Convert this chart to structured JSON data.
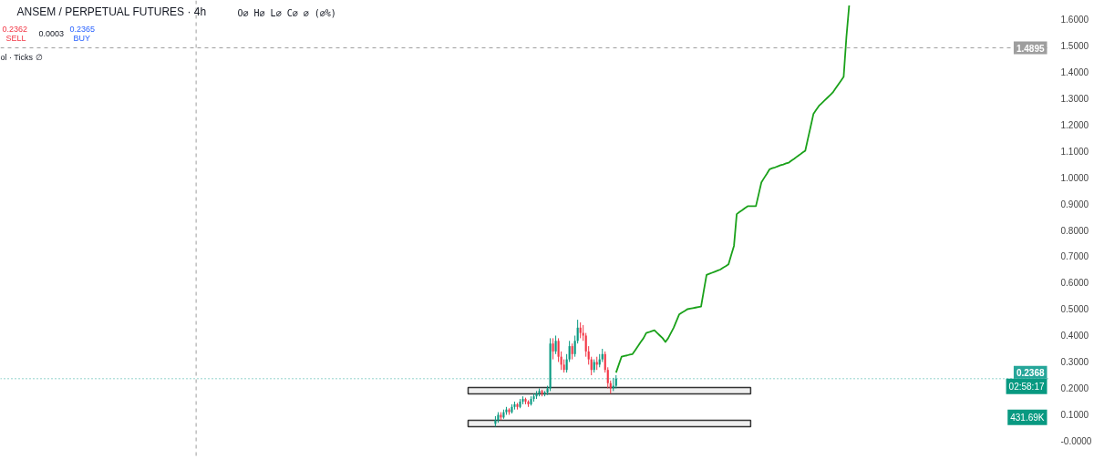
{
  "chart_data": {
    "type": "candlestick",
    "title": "ANSEM / PERPETUAL FUTURES · 4h",
    "subtitle": "O∅ H∅ L∅ C∅ ∅ (∅%)",
    "categories": [
      null,
      null,
      null,
      null,
      null,
      null,
      null,
      null,
      null,
      null,
      null,
      null,
      null,
      null,
      null,
      null,
      null,
      null,
      null,
      null,
      null,
      null,
      null,
      null,
      null,
      null,
      null,
      null,
      null,
      null,
      null,
      null,
      null,
      null,
      null,
      null,
      null,
      null,
      null,
      null,
      null,
      null,
      null,
      null,
      null,
      null,
      null,
      null,
      null,
      null,
      null,
      null,
      null,
      null,
      null,
      null,
      null,
      null,
      null,
      null,
      null,
      null,
      null,
      null,
      null,
      null,
      null,
      null,
      null,
      null,
      null,
      null,
      null,
      null,
      null,
      null,
      null,
      null,
      null,
      null,
      null,
      null,
      null,
      null,
      null,
      null,
      null,
      null,
      null,
      null,
      null,
      null,
      null,
      null,
      null,
      null,
      null,
      null,
      null,
      null,
      null,
      null,
      null,
      null,
      null,
      null,
      null,
      null,
      null,
      null,
      null,
      null,
      null,
      null,
      null,
      null,
      null,
      null,
      null,
      null,
      null,
      null,
      null,
      null,
      null,
      null,
      null,
      null,
      null,
      null,
      null,
      null,
      null,
      null,
      null,
      null,
      null,
      null,
      null,
      null,
      null,
      null,
      null,
      null,
      null,
      null,
      null,
      null,
      null,
      null,
      null,
      null,
      null,
      null,
      null,
      null,
      null,
      null,
      null,
      null,
      null,
      null,
      null,
      null,
      null,
      null,
      null,
      null,
      null,
      null,
      null,
      null,
      null,
      null,
      null,
      null,
      null,
      null,
      null,
      null,
      null,
      null,
      null,
      null,
      null,
      null,
      null,
      null,
      null,
      null,
      null,
      null,
      null,
      null,
      null,
      null,
      null,
      null,
      null,
      null,
      null,
      null,
      null,
      null,
      null,
      null,
      null,
      null,
      null,
      null,
      null,
      null,
      null,
      null,
      null,
      null,
      null,
      null,
      null,
      null,
      null,
      null,
      null,
      null,
      null,
      null,
      null,
      null,
      null,
      null,
      null,
      null,
      null,
      null,
      null,
      null,
      null,
      null,
      null,
      null,
      null,
      null,
      null,
      null,
      null,
      null,
      null,
      null,
      null,
      null,
      null,
      null,
      null,
      null,
      null,
      null,
      null,
      null,
      null,
      null,
      null,
      null,
      null,
      null,
      null,
      null,
      null,
      null,
      null,
      null,
      null,
      null,
      null,
      null,
      null,
      null,
      null,
      null,
      null,
      null,
      null,
      null,
      null,
      null,
      null,
      null,
      null,
      null,
      null,
      null,
      null,
      null,
      null,
      null,
      null,
      null,
      null,
      null,
      null,
      null,
      null,
      null,
      null,
      null,
      null,
      null,
      null,
      null,
      null,
      null,
      null,
      null,
      null,
      null,
      null,
      null,
      null,
      null,
      null,
      null,
      null,
      null,
      null,
      null,
      null,
      null,
      null,
      null,
      null,
      null,
      null,
      null,
      null,
      null,
      null,
      null,
      null,
      null,
      null,
      null,
      null,
      null,
      null,
      null,
      null,
      null,
      null,
      null,
      null,
      null,
      null,
      null,
      null,
      null,
      null,
      null,
      null,
      null,
      null,
      null,
      null,
      null,
      null,
      null,
      null,
      null,
      null,
      null,
      null,
      null,
      null,
      null,
      null,
      null,
      null,
      null,
      null,
      null,
      null,
      null,
      null,
      null,
      null
    ],
    "ohlc": [
      null,
      null,
      null,
      null,
      null,
      null,
      null,
      null,
      null,
      null,
      null,
      null,
      null,
      null,
      null,
      null,
      null,
      null,
      null,
      null,
      null,
      null,
      null,
      null,
      null,
      null,
      null,
      null,
      null,
      null,
      null,
      null,
      null,
      null,
      null,
      null,
      null,
      null,
      null,
      null,
      null,
      null,
      null,
      null,
      null,
      null,
      null,
      null,
      null,
      null,
      null,
      null,
      null,
      null,
      null,
      null,
      null,
      null,
      null,
      null,
      null,
      null,
      null,
      null,
      null,
      null,
      null,
      null,
      null,
      null,
      null,
      null,
      null,
      null,
      null,
      null,
      null,
      null,
      null,
      null,
      null,
      null,
      null,
      null,
      null,
      null,
      null,
      null,
      null,
      null,
      null,
      null,
      null,
      null,
      null,
      null,
      null,
      null,
      null,
      null,
      null,
      null,
      null,
      null,
      null,
      null,
      null,
      null,
      null,
      null,
      null,
      null,
      null,
      null,
      null,
      null,
      null,
      null,
      null,
      null,
      null,
      null,
      null,
      null,
      null,
      null,
      null,
      null,
      null,
      null,
      null,
      null,
      null,
      null,
      null,
      null,
      null,
      null,
      null,
      null,
      null,
      null,
      null,
      null,
      null,
      null,
      null,
      null,
      null,
      null,
      null,
      null,
      null,
      null,
      null,
      null,
      null,
      null,
      null,
      null,
      null,
      null,
      null,
      null,
      null,
      null,
      null,
      null,
      null,
      null,
      null,
      null,
      null,
      null,
      null,
      null,
      null,
      null,
      null,
      null,
      [
        0.066,
        0.095,
        0.055,
        0.08
      ],
      [
        0.08,
        0.11,
        0.07,
        0.1
      ],
      [
        0.1,
        0.11,
        0.08,
        0.09
      ],
      [
        0.09,
        0.12,
        0.085,
        0.11
      ],
      [
        0.11,
        0.13,
        0.1,
        0.12
      ],
      [
        0.12,
        0.125,
        0.1,
        0.11
      ],
      [
        0.11,
        0.14,
        0.105,
        0.13
      ],
      [
        0.13,
        0.15,
        0.12,
        0.14
      ],
      [
        0.14,
        0.145,
        0.12,
        0.13
      ],
      [
        0.13,
        0.16,
        0.125,
        0.15
      ],
      [
        0.15,
        0.17,
        0.14,
        0.16
      ],
      [
        0.16,
        0.165,
        0.14,
        0.15
      ],
      [
        0.15,
        0.155,
        0.13,
        0.14
      ],
      [
        0.14,
        0.17,
        0.135,
        0.16
      ],
      [
        0.16,
        0.18,
        0.15,
        0.17
      ],
      [
        0.17,
        0.19,
        0.16,
        0.18
      ],
      [
        0.18,
        0.2,
        0.17,
        0.19
      ],
      [
        0.19,
        0.195,
        0.17,
        0.18
      ],
      [
        0.18,
        0.19,
        0.17,
        0.185
      ],
      [
        0.185,
        0.21,
        0.175,
        0.2
      ],
      [
        0.2,
        0.39,
        0.19,
        0.37
      ],
      [
        0.37,
        0.39,
        0.31,
        0.34
      ],
      [
        0.34,
        0.4,
        0.33,
        0.38
      ],
      [
        0.38,
        0.39,
        0.3,
        0.32
      ],
      [
        0.32,
        0.34,
        0.27,
        0.29
      ],
      [
        0.29,
        0.31,
        0.26,
        0.27
      ],
      [
        0.27,
        0.33,
        0.26,
        0.31
      ],
      [
        0.31,
        0.38,
        0.3,
        0.36
      ],
      [
        0.36,
        0.37,
        0.31,
        0.33
      ],
      [
        0.33,
        0.4,
        0.32,
        0.38
      ],
      [
        0.38,
        0.46,
        0.37,
        0.43
      ],
      [
        0.43,
        0.45,
        0.39,
        0.41
      ],
      [
        0.41,
        0.44,
        0.38,
        0.4
      ],
      [
        0.4,
        0.41,
        0.32,
        0.34
      ],
      [
        0.34,
        0.36,
        0.29,
        0.31
      ],
      [
        0.31,
        0.32,
        0.25,
        0.27
      ],
      [
        0.27,
        0.31,
        0.26,
        0.3
      ],
      [
        0.3,
        0.32,
        0.27,
        0.29
      ],
      [
        0.29,
        0.33,
        0.28,
        0.31
      ],
      [
        0.31,
        0.35,
        0.3,
        0.33
      ],
      [
        0.33,
        0.34,
        0.26,
        0.27
      ],
      [
        0.27,
        0.28,
        0.2,
        0.22
      ],
      [
        0.22,
        0.23,
        0.18,
        0.2
      ],
      [
        0.2,
        0.24,
        0.19,
        0.21
      ],
      [
        0.21,
        0.25,
        0.2,
        0.237
      ],
      null,
      null,
      null,
      null,
      null,
      null,
      null,
      null,
      null,
      null,
      null,
      null,
      null,
      null,
      null,
      null,
      null,
      null,
      null,
      null,
      null,
      null,
      null,
      null,
      null,
      null,
      null,
      null,
      null,
      null,
      null,
      null,
      null,
      null,
      null,
      null,
      null,
      null,
      null,
      null,
      null,
      null,
      null,
      null,
      null,
      null,
      null,
      null,
      null,
      null,
      null,
      null,
      null,
      null,
      null,
      null,
      null,
      null,
      null,
      null,
      null,
      null,
      null,
      null,
      null,
      null,
      null,
      null,
      null,
      null,
      null,
      null,
      null,
      null,
      null,
      null,
      null,
      null,
      null,
      null,
      null,
      null,
      null,
      null,
      null,
      null,
      null,
      null,
      null,
      null,
      null,
      null,
      null,
      null,
      null,
      null,
      null,
      null,
      null,
      null,
      null,
      null,
      null,
      null,
      null,
      null,
      null,
      null,
      null,
      null,
      null,
      null,
      null,
      null,
      null,
      null,
      null,
      null,
      null,
      null,
      null,
      null,
      null,
      null,
      null,
      null,
      null,
      null,
      null,
      null,
      null,
      null,
      null,
      null,
      null,
      null,
      null,
      null,
      null,
      null,
      null,
      null,
      null,
      null,
      null,
      null,
      null,
      null,
      null,
      null,
      null,
      null,
      null,
      null,
      null,
      null,
      null,
      null
    ],
    "colors": [
      null,
      null,
      null,
      null,
      null,
      null,
      null,
      null,
      null,
      null,
      null,
      null,
      null,
      null,
      null,
      null,
      null,
      null,
      null,
      null,
      null,
      null,
      null,
      null,
      null,
      null,
      null,
      null,
      null,
      null,
      null,
      null,
      null,
      null,
      null,
      null,
      null,
      null,
      null,
      null,
      null,
      null,
      null,
      null,
      null,
      null,
      null,
      null,
      null,
      null,
      null,
      null,
      null,
      null,
      null,
      null,
      null,
      null,
      null,
      null,
      null,
      null,
      null,
      null,
      null,
      null,
      null,
      null,
      null,
      null,
      null,
      null,
      null,
      null,
      null,
      null,
      null,
      null,
      null,
      null,
      null,
      null,
      null,
      null,
      null,
      null,
      null,
      null,
      null,
      null,
      null,
      null,
      null,
      null,
      null,
      null,
      null,
      null,
      null,
      null,
      null,
      null,
      null,
      null,
      null,
      null,
      null,
      null,
      null,
      null,
      null,
      null,
      null,
      null,
      null,
      null,
      null,
      null,
      null,
      null,
      null,
      null,
      null,
      null,
      null,
      null,
      null,
      null,
      null,
      null,
      null,
      null,
      null,
      null,
      null,
      null,
      null,
      null,
      null,
      null,
      null,
      null,
      null,
      null,
      null,
      null,
      null,
      null,
      null,
      null,
      null,
      null,
      null,
      null,
      null,
      null,
      null,
      null,
      null,
      null,
      null,
      null,
      null,
      null,
      null,
      null,
      null,
      null,
      null,
      null,
      null,
      null,
      null,
      null,
      null,
      null,
      null,
      null,
      null,
      null,
      "#089981",
      "#089981",
      "#f23645",
      "#089981",
      "#089981",
      "#f23645",
      "#089981",
      "#089981",
      "#f23645",
      "#089981",
      "#089981",
      "#f23645",
      "#f23645",
      "#089981",
      "#089981",
      "#089981",
      "#089981",
      "#f23645",
      "#089981",
      "#089981",
      "#089981",
      "#f23645",
      "#089981",
      "#f23645",
      "#f23645",
      "#f23645",
      "#089981",
      "#089981",
      "#f23645",
      "#089981",
      "#089981",
      "#f23645",
      "#f23645",
      "#f23645",
      "#f23645",
      "#f23645",
      "#089981",
      "#f23645",
      "#089981",
      "#089981",
      "#f23645",
      "#f23645",
      "#f23645",
      "#089981",
      "#089981",
      null,
      null,
      null,
      null,
      null,
      null,
      null,
      null,
      null,
      null,
      null,
      null,
      null,
      null,
      null,
      null,
      null,
      null,
      null,
      null,
      null,
      null,
      null,
      null,
      null,
      null,
      null,
      null,
      null,
      null,
      null,
      null,
      null,
      null,
      null,
      null,
      null,
      null,
      null,
      null,
      null,
      null,
      null,
      null,
      null,
      null,
      null,
      null,
      null,
      null,
      null,
      null,
      null,
      null,
      null,
      null,
      null,
      null,
      null,
      null,
      null,
      null,
      null,
      null,
      null,
      null,
      null,
      null,
      null,
      null,
      null,
      null,
      null,
      null,
      null,
      null,
      null,
      null,
      null,
      null,
      null,
      null,
      null,
      null,
      null,
      null,
      null,
      null,
      null,
      null,
      null,
      null,
      null,
      null,
      null,
      null,
      null,
      null,
      null,
      null,
      null,
      null,
      null,
      null,
      null,
      null,
      null,
      null,
      null,
      null,
      null,
      null,
      null,
      null,
      null,
      null,
      null,
      null,
      null,
      null,
      null,
      null,
      null,
      null,
      null,
      null,
      null,
      null,
      null,
      null,
      null,
      null,
      null,
      null,
      null,
      null,
      null,
      null,
      null,
      null,
      null,
      null,
      null,
      null,
      null,
      null,
      null,
      null,
      null,
      null,
      null,
      null,
      null,
      null,
      null,
      null,
      null,
      null
    ],
    "series": [
      {
        "type": "line",
        "color": "#1aa11a",
        "values": [
          null,
          null,
          null,
          null,
          null,
          null,
          null,
          null,
          null,
          null,
          null,
          null,
          null,
          null,
          null,
          null,
          null,
          null,
          null,
          null,
          null,
          null,
          null,
          null,
          null,
          null,
          null,
          null,
          null,
          null,
          null,
          null,
          null,
          null,
          null,
          null,
          null,
          null,
          null,
          null,
          null,
          null,
          null,
          null,
          null,
          null,
          null,
          null,
          null,
          null,
          null,
          null,
          null,
          null,
          null,
          null,
          null,
          null,
          null,
          null,
          null,
          null,
          null,
          null,
          null,
          null,
          null,
          null,
          null,
          null,
          null,
          null,
          null,
          null,
          null,
          null,
          null,
          null,
          null,
          null,
          null,
          null,
          null,
          null,
          null,
          null,
          null,
          null,
          null,
          null,
          null,
          null,
          null,
          null,
          null,
          null,
          null,
          null,
          null,
          null,
          null,
          null,
          null,
          null,
          null,
          null,
          null,
          null,
          null,
          null,
          null,
          null,
          null,
          null,
          null,
          null,
          null,
          null,
          null,
          null,
          null,
          null,
          null,
          null,
          null,
          null,
          null,
          null,
          null,
          null,
          null,
          null,
          null,
          null,
          null,
          null,
          null,
          null,
          null,
          null,
          null,
          null,
          null,
          null,
          null,
          null,
          null,
          null,
          null,
          null,
          null,
          null,
          null,
          null,
          null,
          null,
          null,
          null,
          null,
          null,
          null,
          null,
          null,
          null,
          null,
          null,
          null,
          null,
          null,
          null,
          null,
          null,
          null,
          null,
          null,
          null,
          null,
          null,
          null,
          null,
          null,
          null,
          null,
          null,
          null,
          null,
          null,
          null,
          null,
          null,
          null,
          null,
          null,
          null,
          null,
          null,
          null,
          null,
          null,
          null,
          null,
          null,
          null,
          null,
          null,
          null,
          null,
          null,
          null,
          null,
          null,
          null,
          null,
          null,
          null,
          null,
          null,
          null,
          null,
          null,
          null,
          null,
          null,
          null,
          0.26,
          0.29,
          0.32,
          0.323,
          0.325,
          0.328,
          0.33,
          0.345,
          0.36,
          0.376,
          0.39,
          0.41,
          0.413,
          0.417,
          0.42,
          0.41,
          0.4,
          0.39,
          0.376,
          0.39,
          0.41,
          0.43,
          0.455,
          0.48,
          0.487,
          0.493,
          0.5,
          0.502,
          0.504,
          0.506,
          0.508,
          0.51,
          0.57,
          0.63,
          0.634,
          0.638,
          0.642,
          0.646,
          0.65,
          0.657,
          0.663,
          0.67,
          0.705,
          0.74,
          0.86,
          0.868,
          0.875,
          0.883,
          0.89,
          0.89,
          0.89,
          0.89,
          0.935,
          0.98,
          0.997,
          1.013,
          1.03,
          1.034,
          1.037,
          1.041,
          1.045,
          1.048,
          1.052,
          1.055,
          1.063,
          1.07,
          1.078,
          1.085,
          1.093,
          1.1,
          1.147,
          1.193,
          1.24,
          1.255,
          1.27,
          1.28,
          1.29,
          1.3,
          1.31,
          1.32,
          1.335,
          1.35,
          1.365,
          1.38,
          1.53,
          1.65,
          null,
          null,
          null,
          null,
          null,
          null,
          null,
          null,
          null,
          null,
          null,
          null,
          null,
          null,
          null,
          null,
          null,
          null,
          null,
          null,
          null,
          null,
          null,
          null,
          null,
          null,
          null,
          null,
          null,
          null,
          null,
          null,
          null,
          null,
          null,
          null,
          null,
          null,
          null,
          null,
          null,
          null,
          null,
          null,
          null,
          null,
          null,
          null,
          null,
          null,
          null,
          null,
          null,
          null,
          null,
          null,
          null,
          null,
          null,
          null,
          null,
          null,
          null,
          null,
          null,
          null,
          null,
          null,
          null,
          null,
          null,
          null,
          null
        ]
      }
    ],
    "ylim": [
      -0.069,
      1.669
    ],
    "yticks": [
      {
        "value": 0,
        "label": "-0.0000"
      },
      {
        "value": 0.1,
        "label": "0.1000"
      },
      {
        "value": 0.2,
        "label": "0.2000"
      },
      {
        "value": 0.3,
        "label": "0.3000"
      },
      {
        "value": 0.4,
        "label": "0.4000"
      },
      {
        "value": 0.5,
        "label": "0.5000"
      },
      {
        "value": 0.6,
        "label": "0.6000"
      },
      {
        "value": 0.7,
        "label": "0.7000"
      },
      {
        "value": 0.8,
        "label": "0.8000"
      },
      {
        "value": 0.9,
        "label": "0.9000"
      },
      {
        "value": 1.0,
        "label": "1.0000"
      },
      {
        "value": 1.1,
        "label": "1.1000"
      },
      {
        "value": 1.2,
        "label": "1.2000"
      },
      {
        "value": 1.3,
        "label": "1.3000"
      },
      {
        "value": 1.4,
        "label": "1.4000"
      },
      {
        "value": 1.5,
        "label": "1.5000"
      },
      {
        "value": 1.6,
        "label": "1.6000"
      }
    ],
    "tick_labels": "y",
    "grid": false,
    "ref_lines": [
      {
        "axis": "y",
        "value": 0.2368,
        "label": "0.2368",
        "color": "#26a69a",
        "line_style": "dotted"
      },
      {
        "axis": "y",
        "value": 1.4895,
        "label": "1.4895",
        "color": "#9e9e9e",
        "line_style": "dashed"
      }
    ],
    "bands": [
      {
        "axis": "y",
        "from": 0.179,
        "to": 0.203,
        "label": null,
        "color": "#333333"
      },
      {
        "axis": "y",
        "from": 0.055,
        "to": 0.079,
        "label": null,
        "color": "#333333"
      }
    ],
    "annotations": [
      "0.2362",
      "SELL",
      "0.0003",
      "0.2365",
      "BUY",
      "ol · Ticks ∅",
      "02:58:17",
      "431.69K"
    ]
  }
}
